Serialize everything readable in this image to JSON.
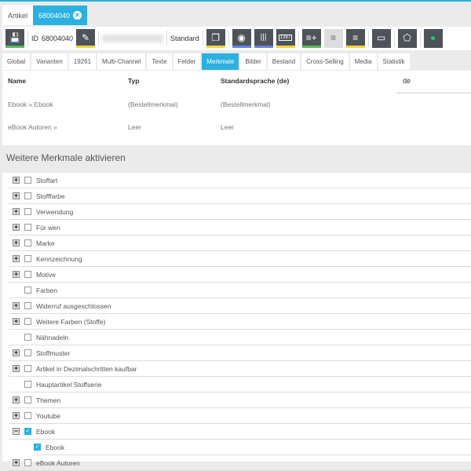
{
  "doc_tabs": [
    "Artikel",
    "68004040"
  ],
  "toolbar": {
    "id_label": "ID",
    "id_value": "68004040",
    "mode": "Standard",
    "icons": [
      "save-icon",
      "edit-icon",
      "copy-icon",
      "eye-icon",
      "barcode-icon",
      "counter-icon",
      "list-add-icon",
      "list-view-icon",
      "list-settings-icon",
      "screen-icon",
      "tag-icon",
      "user-icon"
    ],
    "counter_text": "1367"
  },
  "tabs": [
    "Global",
    "Varianten",
    "19261",
    "Multi-Channel",
    "Texte",
    "Felder",
    "Merkmale",
    "Bilder",
    "Bestand",
    "Cross-Selling",
    "Media",
    "Statistik"
  ],
  "active_tab": "Merkmale",
  "table": {
    "headers": [
      "Name",
      "Typ",
      "Standardsprache (de)"
    ],
    "lang": "de",
    "rows": [
      [
        "Ebook » Ebook",
        "(Bestellmerkmal)",
        "(Bestellmerkmal)"
      ],
      [
        "eBook Autoren »",
        "Leer",
        "Leer"
      ]
    ]
  },
  "section_title": "Weitere Merkmale aktivieren",
  "items": [
    {
      "label": "Stoffart",
      "expand": "+",
      "checked": false
    },
    {
      "label": "Stofffarbe",
      "expand": "+",
      "checked": false
    },
    {
      "label": "Verwendung",
      "expand": "+",
      "checked": false
    },
    {
      "label": "Für wen",
      "expand": "+",
      "checked": false
    },
    {
      "label": "Marke",
      "expand": "+",
      "checked": false
    },
    {
      "label": "Kennzeichnung",
      "expand": "+",
      "checked": false
    },
    {
      "label": "Motive",
      "expand": "+",
      "checked": false
    },
    {
      "label": "Farben",
      "expand": "",
      "checked": false
    },
    {
      "label": "Widerruf ausgeschlossen",
      "expand": "+",
      "checked": false
    },
    {
      "label": "Weitere Farben (Stoffe)",
      "expand": "+",
      "checked": false
    },
    {
      "label": "Nähnadeln",
      "expand": "",
      "checked": false
    },
    {
      "label": "Stoffmuster",
      "expand": "+",
      "checked": false
    },
    {
      "label": "Artikel in Dezimalschritten kaufbar",
      "expand": "+",
      "checked": false
    },
    {
      "label": "Hauptartikel Stoffserie",
      "expand": "",
      "checked": false
    },
    {
      "label": "Themen",
      "expand": "+",
      "checked": false
    },
    {
      "label": "Youtube",
      "expand": "+",
      "checked": false
    },
    {
      "label": "Ebook",
      "expand": "−",
      "checked": true
    },
    {
      "label": "Ebook",
      "child": true,
      "checked": true
    },
    {
      "label": "eBook Autoren",
      "expand": "+",
      "checked": false
    }
  ],
  "colors": {
    "accent": "#2bb0e0",
    "toolbar_button": "#4e535a",
    "green": "#5cb85c",
    "yellow": "#f0d43a",
    "blue": "#6b7fe0"
  }
}
